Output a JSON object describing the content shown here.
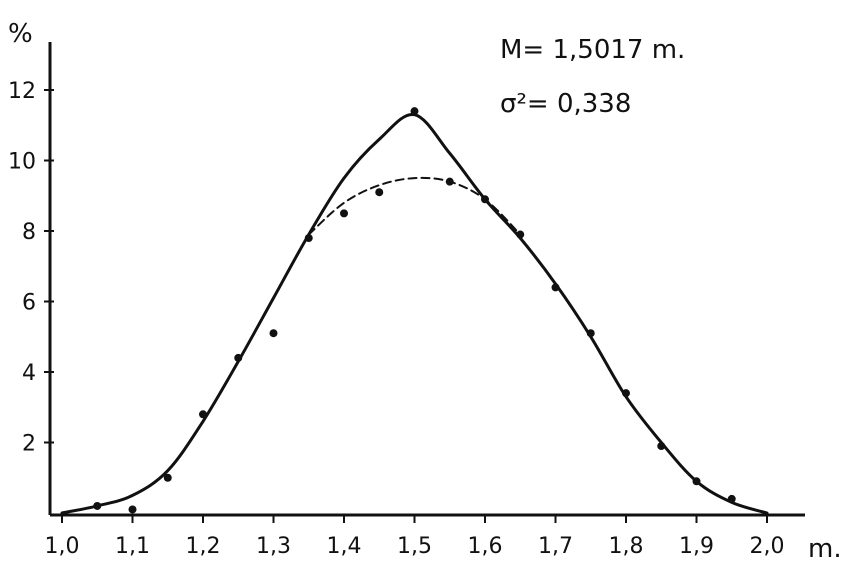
{
  "chart_data": {
    "type": "line",
    "title": "",
    "ylabel": "%",
    "xlabel": "m.",
    "xlim": [
      1.0,
      2.0
    ],
    "ylim": [
      0,
      12
    ],
    "x_ticks": [
      "1,0",
      "1,1",
      "1,2",
      "1,3",
      "1,4",
      "1,5",
      "1,6",
      "1,7",
      "1,8",
      "1,9",
      "2,0"
    ],
    "x_tick_values": [
      1.0,
      1.1,
      1.2,
      1.3,
      1.4,
      1.5,
      1.6,
      1.7,
      1.8,
      1.9,
      2.0
    ],
    "y_ticks": [
      "2",
      "4",
      "6",
      "8",
      "10",
      "12"
    ],
    "y_tick_values": [
      2,
      4,
      6,
      8,
      10,
      12
    ],
    "grid": false,
    "annotations": [
      "M= 1,5017 m.",
      "σ²= 0,338"
    ],
    "series": [
      {
        "style": "solid",
        "x": [
          1.0,
          1.05,
          1.1,
          1.15,
          1.2,
          1.25,
          1.3,
          1.35,
          1.4,
          1.45,
          1.5,
          1.55,
          1.6,
          1.65,
          1.7,
          1.75,
          1.8,
          1.85,
          1.9,
          1.95,
          2.0
        ],
        "y": [
          0.0,
          0.2,
          0.5,
          1.2,
          2.6,
          4.3,
          6.1,
          7.9,
          9.5,
          10.6,
          11.3,
          10.2,
          8.9,
          7.8,
          6.5,
          5.0,
          3.3,
          2.0,
          0.9,
          0.3,
          0.0
        ]
      },
      {
        "style": "dashed",
        "x": [
          1.35,
          1.4,
          1.45,
          1.5,
          1.55,
          1.6,
          1.65
        ],
        "y": [
          7.9,
          8.8,
          9.3,
          9.5,
          9.4,
          8.9,
          7.9
        ]
      },
      {
        "style": "points",
        "x": [
          1.05,
          1.1,
          1.15,
          1.2,
          1.25,
          1.3,
          1.35,
          1.4,
          1.45,
          1.5,
          1.55,
          1.6,
          1.65,
          1.7,
          1.75,
          1.8,
          1.85,
          1.9,
          1.95
        ],
        "y": [
          0.2,
          0.1,
          1.0,
          2.8,
          4.4,
          5.1,
          7.8,
          8.5,
          9.1,
          11.4,
          9.4,
          8.9,
          7.9,
          6.4,
          5.1,
          3.4,
          1.9,
          0.9,
          0.4
        ]
      }
    ]
  }
}
